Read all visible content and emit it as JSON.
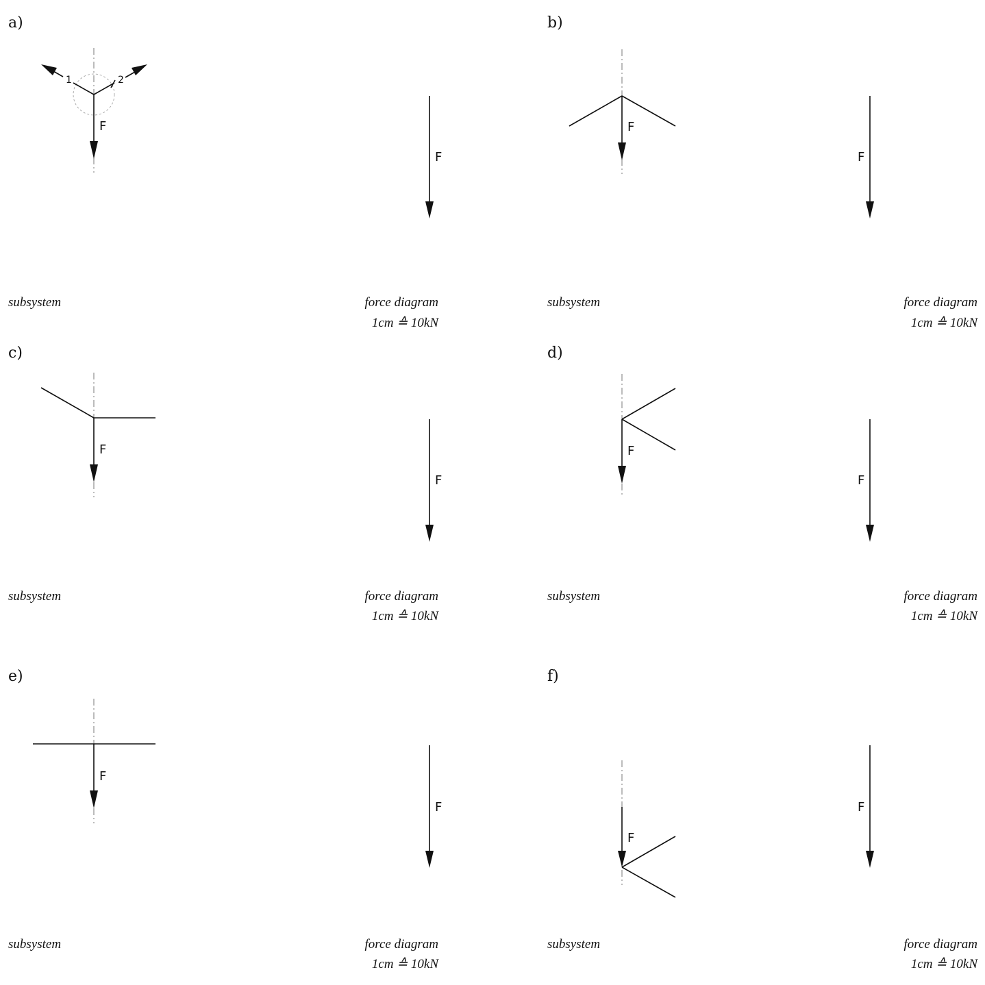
{
  "panels": [
    {
      "id": "a",
      "label": "a)",
      "subsystem_caption": "subsystem",
      "diagram_caption": "force diagram",
      "scale_caption": "1cm ≙ 10kN",
      "force_label": "F",
      "diagram_force_label": "F",
      "member_labels": [
        "1",
        "2"
      ]
    },
    {
      "id": "b",
      "label": "b)",
      "subsystem_caption": "subsystem",
      "diagram_caption": "force diagram",
      "scale_caption": "1cm ≙ 10kN",
      "force_label": "F",
      "diagram_force_label": "F"
    },
    {
      "id": "c",
      "label": "c)",
      "subsystem_caption": "subsystem",
      "diagram_caption": "force diagram",
      "scale_caption": "1cm ≙ 10kN",
      "force_label": "F",
      "diagram_force_label": "F"
    },
    {
      "id": "d",
      "label": "d)",
      "subsystem_caption": "subsystem",
      "diagram_caption": "force diagram",
      "scale_caption": "1cm ≙ 10kN",
      "force_label": "F",
      "diagram_force_label": "F"
    },
    {
      "id": "e",
      "label": "e)",
      "subsystem_caption": "subsystem",
      "diagram_caption": "force diagram",
      "scale_caption": "1cm ≙ 10kN",
      "force_label": "F",
      "diagram_force_label": "F"
    },
    {
      "id": "f",
      "label": "f)",
      "subsystem_caption": "subsystem",
      "diagram_caption": "force diagram",
      "scale_caption": "1cm ≙ 10kN",
      "force_label": "F",
      "diagram_force_label": "F"
    }
  ]
}
